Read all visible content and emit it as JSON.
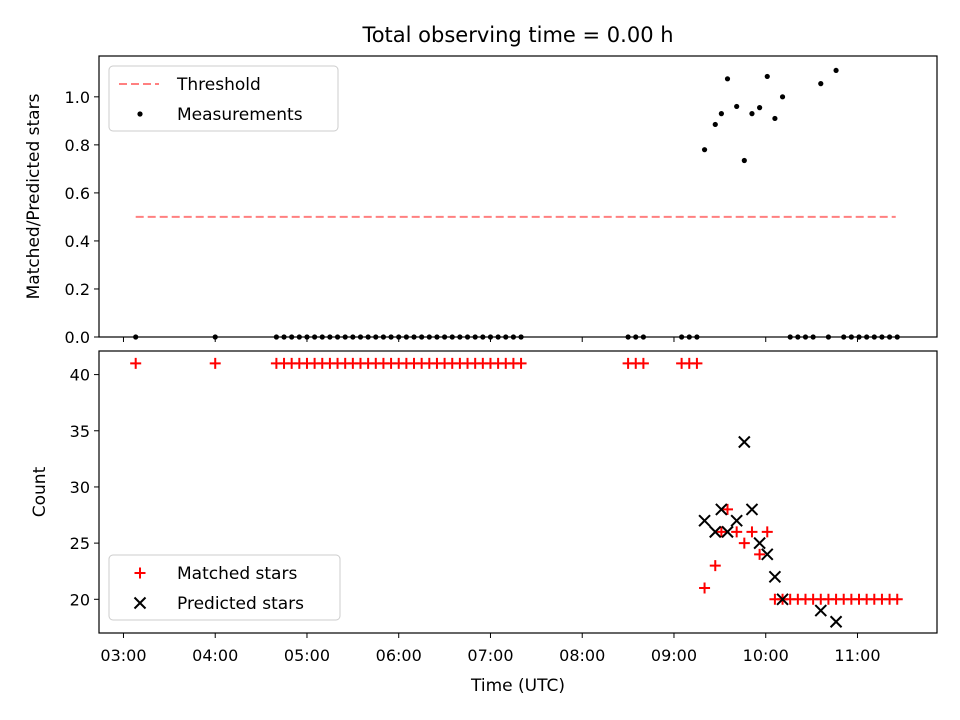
{
  "colors": {
    "threshold": "#ff8080",
    "matched": "#ff0000",
    "predicted": "#000000",
    "measurements": "#000000"
  },
  "chart_data": [
    {
      "type": "scatter",
      "title": "Total observing time = 0.00 h",
      "ylabel": "Matched/Predicted stars",
      "xlim": [
        "02:44",
        "11:52"
      ],
      "ylim": [
        0,
        1.17
      ],
      "yticks": [
        "0.0",
        "0.2",
        "0.4",
        "0.6",
        "0.8",
        "1.0"
      ],
      "legend_position": "top-left",
      "series": [
        {
          "name": "Threshold",
          "style": "dashed-line",
          "points": [
            [
              "03:08",
              0.5
            ],
            [
              "11:25",
              0.5
            ]
          ]
        },
        {
          "name": "Measurements",
          "style": "dot",
          "points": [
            [
              "03:08",
              0
            ],
            [
              "04:00",
              0
            ],
            [
              "04:40",
              0
            ],
            [
              "04:45",
              0
            ],
            [
              "04:50",
              0
            ],
            [
              "04:55",
              0
            ],
            [
              "05:00",
              0
            ],
            [
              "05:05",
              0
            ],
            [
              "05:10",
              0
            ],
            [
              "05:15",
              0
            ],
            [
              "05:20",
              0
            ],
            [
              "05:25",
              0
            ],
            [
              "05:30",
              0
            ],
            [
              "05:35",
              0
            ],
            [
              "05:40",
              0
            ],
            [
              "05:45",
              0
            ],
            [
              "05:50",
              0
            ],
            [
              "05:55",
              0
            ],
            [
              "06:00",
              0
            ],
            [
              "06:05",
              0
            ],
            [
              "06:10",
              0
            ],
            [
              "06:15",
              0
            ],
            [
              "06:20",
              0
            ],
            [
              "06:25",
              0
            ],
            [
              "06:30",
              0
            ],
            [
              "06:35",
              0
            ],
            [
              "06:40",
              0
            ],
            [
              "06:45",
              0
            ],
            [
              "06:50",
              0
            ],
            [
              "06:55",
              0
            ],
            [
              "07:00",
              0
            ],
            [
              "07:05",
              0
            ],
            [
              "07:10",
              0
            ],
            [
              "07:15",
              0
            ],
            [
              "07:20",
              0
            ],
            [
              "08:30",
              0
            ],
            [
              "08:35",
              0
            ],
            [
              "08:40",
              0
            ],
            [
              "09:05",
              0
            ],
            [
              "09:10",
              0
            ],
            [
              "09:15",
              0
            ],
            [
              "09:20",
              0.78
            ],
            [
              "09:27",
              0.885
            ],
            [
              "09:31",
              0.93
            ],
            [
              "09:35",
              1.075
            ],
            [
              "09:41",
              0.96
            ],
            [
              "09:46",
              0.735
            ],
            [
              "09:51",
              0.93
            ],
            [
              "09:56",
              0.955
            ],
            [
              "10:01",
              1.085
            ],
            [
              "10:06",
              0.91
            ],
            [
              "10:11",
              1.0
            ],
            [
              "10:36",
              1.055
            ],
            [
              "10:46",
              1.11
            ],
            [
              "10:16",
              0
            ],
            [
              "10:21",
              0
            ],
            [
              "10:26",
              0
            ],
            [
              "10:31",
              0
            ],
            [
              "10:41",
              0
            ],
            [
              "10:51",
              0
            ],
            [
              "10:56",
              0
            ],
            [
              "11:01",
              0
            ],
            [
              "11:06",
              0
            ],
            [
              "11:11",
              0
            ],
            [
              "11:16",
              0
            ],
            [
              "11:21",
              0
            ],
            [
              "11:26",
              0
            ]
          ]
        }
      ]
    },
    {
      "type": "scatter",
      "xlabel": "Time (UTC)",
      "ylabel": "Count",
      "xlim": [
        "02:44",
        "11:52"
      ],
      "ylim": [
        17,
        42.1
      ],
      "yticks": [
        "20",
        "25",
        "30",
        "35",
        "40"
      ],
      "xticks": [
        "03:00",
        "04:00",
        "05:00",
        "06:00",
        "07:00",
        "08:00",
        "09:00",
        "10:00",
        "11:00"
      ],
      "legend_position": "bottom-left",
      "series": [
        {
          "name": "Matched stars",
          "style": "plus",
          "points": [
            [
              "03:08",
              41
            ],
            [
              "04:00",
              41
            ],
            [
              "04:40",
              41
            ],
            [
              "04:45",
              41
            ],
            [
              "04:50",
              41
            ],
            [
              "04:55",
              41
            ],
            [
              "05:00",
              41
            ],
            [
              "05:05",
              41
            ],
            [
              "05:10",
              41
            ],
            [
              "05:15",
              41
            ],
            [
              "05:20",
              41
            ],
            [
              "05:25",
              41
            ],
            [
              "05:30",
              41
            ],
            [
              "05:35",
              41
            ],
            [
              "05:40",
              41
            ],
            [
              "05:45",
              41
            ],
            [
              "05:50",
              41
            ],
            [
              "05:55",
              41
            ],
            [
              "06:00",
              41
            ],
            [
              "06:05",
              41
            ],
            [
              "06:10",
              41
            ],
            [
              "06:15",
              41
            ],
            [
              "06:20",
              41
            ],
            [
              "06:25",
              41
            ],
            [
              "06:30",
              41
            ],
            [
              "06:35",
              41
            ],
            [
              "06:40",
              41
            ],
            [
              "06:45",
              41
            ],
            [
              "06:50",
              41
            ],
            [
              "06:55",
              41
            ],
            [
              "07:00",
              41
            ],
            [
              "07:05",
              41
            ],
            [
              "07:10",
              41
            ],
            [
              "07:15",
              41
            ],
            [
              "07:20",
              41
            ],
            [
              "08:30",
              41
            ],
            [
              "08:35",
              41
            ],
            [
              "08:40",
              41
            ],
            [
              "09:05",
              41
            ],
            [
              "09:10",
              41
            ],
            [
              "09:15",
              41
            ],
            [
              "09:20",
              21
            ],
            [
              "09:27",
              23
            ],
            [
              "09:31",
              26
            ],
            [
              "09:35",
              28
            ],
            [
              "09:41",
              26
            ],
            [
              "09:46",
              25
            ],
            [
              "09:51",
              26
            ],
            [
              "09:56",
              24
            ],
            [
              "10:01",
              26
            ],
            [
              "10:06",
              20
            ],
            [
              "10:11",
              20
            ],
            [
              "10:16",
              20
            ],
            [
              "10:21",
              20
            ],
            [
              "10:26",
              20
            ],
            [
              "10:31",
              20
            ],
            [
              "10:36",
              20
            ],
            [
              "10:41",
              20
            ],
            [
              "10:46",
              20
            ],
            [
              "10:51",
              20
            ],
            [
              "10:56",
              20
            ],
            [
              "11:01",
              20
            ],
            [
              "11:06",
              20
            ],
            [
              "11:11",
              20
            ],
            [
              "11:16",
              20
            ],
            [
              "11:21",
              20
            ],
            [
              "11:26",
              20
            ]
          ]
        },
        {
          "name": "Predicted stars",
          "style": "cross",
          "points": [
            [
              "09:20",
              27
            ],
            [
              "09:27",
              26
            ],
            [
              "09:31",
              28
            ],
            [
              "09:35",
              26
            ],
            [
              "09:41",
              27
            ],
            [
              "09:46",
              34
            ],
            [
              "09:51",
              28
            ],
            [
              "09:56",
              25
            ],
            [
              "10:01",
              24
            ],
            [
              "10:06",
              22
            ],
            [
              "10:11",
              20
            ],
            [
              "10:36",
              19
            ],
            [
              "10:46",
              18
            ]
          ]
        }
      ]
    }
  ]
}
